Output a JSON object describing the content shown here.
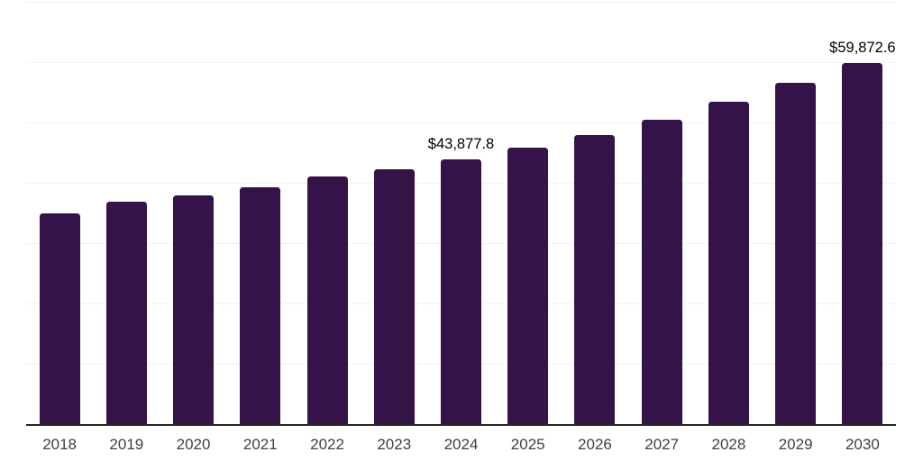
{
  "chart_data": {
    "type": "bar",
    "title": "",
    "xlabel": "",
    "ylabel": "",
    "categories": [
      "2018",
      "2019",
      "2020",
      "2021",
      "2022",
      "2023",
      "2024",
      "2025",
      "2026",
      "2027",
      "2028",
      "2029",
      "2030"
    ],
    "values": [
      34920,
      36860,
      37990,
      39240,
      41075,
      42310,
      43877.8,
      45850,
      47935,
      50515,
      53405,
      56535,
      59872.6
    ],
    "data_labels": {
      "2024": "$43,877.8",
      "2030": "$59,872.6"
    },
    "ylim": [
      0,
      70000
    ],
    "ytick_step": 10000,
    "grid": true,
    "y_axis_tick_labels_visible": false,
    "legend": false,
    "styles": {
      "bar_color": "#341349",
      "gridline_color": "#f2f2f4",
      "axis_line_color": "#262626",
      "tick_label_color": "#404040",
      "data_label_color": "#000000",
      "background": "#ffffff"
    }
  }
}
